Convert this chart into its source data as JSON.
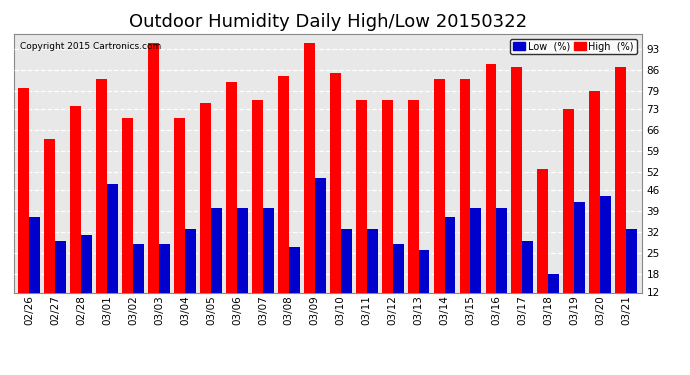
{
  "title": "Outdoor Humidity Daily High/Low 20150322",
  "copyright": "Copyright 2015 Cartronics.com",
  "categories": [
    "02/26",
    "02/27",
    "02/28",
    "03/01",
    "03/02",
    "03/03",
    "03/04",
    "03/05",
    "03/06",
    "03/07",
    "03/08",
    "03/09",
    "03/10",
    "03/11",
    "03/12",
    "03/13",
    "03/14",
    "03/15",
    "03/16",
    "03/17",
    "03/18",
    "03/19",
    "03/20",
    "03/21"
  ],
  "high_values": [
    80,
    63,
    74,
    83,
    70,
    95,
    70,
    75,
    82,
    76,
    84,
    95,
    85,
    76,
    76,
    76,
    83,
    83,
    88,
    87,
    53,
    73,
    79,
    87
  ],
  "low_values": [
    37,
    29,
    31,
    48,
    28,
    28,
    33,
    40,
    40,
    40,
    27,
    50,
    33,
    33,
    28,
    26,
    37,
    40,
    40,
    29,
    18,
    42,
    44,
    33
  ],
  "bar_width": 0.42,
  "high_color": "#FF0000",
  "low_color": "#0000CC",
  "bg_color": "#FFFFFF",
  "plot_bg_color": "#E8E8E8",
  "grid_color": "#FFFFFF",
  "ylim_min": 12,
  "ylim_max": 98,
  "yticks": [
    12,
    18,
    25,
    32,
    39,
    46,
    52,
    59,
    66,
    73,
    79,
    86,
    93
  ],
  "title_fontsize": 13,
  "tick_fontsize": 7.5,
  "legend_low_label": "Low  (%)",
  "legend_high_label": "High  (%)"
}
